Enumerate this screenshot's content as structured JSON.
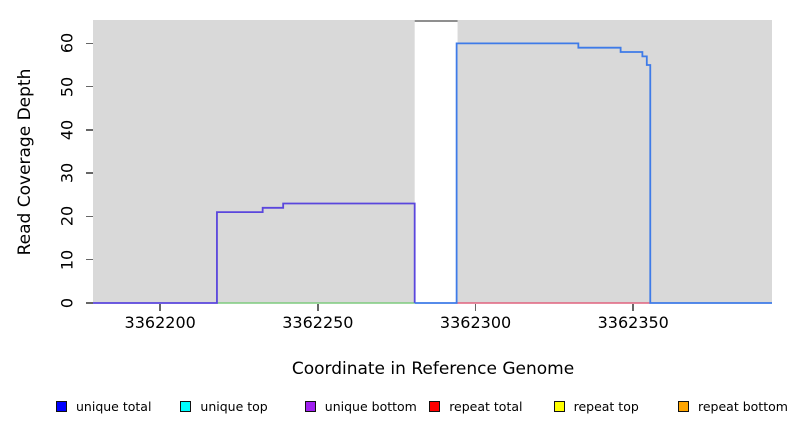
{
  "chart_data": {
    "type": "line",
    "subtype": "step-coverage",
    "title": "",
    "xlabel": "Coordinate in Reference Genome",
    "ylabel": "Read Coverage Depth",
    "xlim": [
      3362178.7,
      3362394.0
    ],
    "ylim": [
      0,
      65.4
    ],
    "x_ticks": [
      3362200,
      3362250,
      3362300,
      3362350
    ],
    "y_ticks": [
      0,
      10,
      20,
      30,
      40,
      50,
      60
    ],
    "grid": false,
    "plot_background": "#ffffff",
    "background_regions": [
      {
        "name": "covered-region-left",
        "x0": 3362178.7,
        "x1": 3362280.7,
        "color": "#d9d9d9"
      },
      {
        "name": "covered-region-right",
        "x0": 3362294.3,
        "x1": 3362394.0,
        "color": "#d9d9d9"
      }
    ],
    "gap_region": {
      "x0": 3362280.7,
      "x1": 3362294.3,
      "cap_color": "#8f8f8f"
    },
    "series": [
      {
        "name": "zero-baseline-green (unique top + repeat top overlap)",
        "color": "#7fcb7f",
        "stroke": 1.6,
        "segments": [
          [
            3362218.0,
            3362280.7,
            0
          ]
        ]
      },
      {
        "name": "zero-baseline-red (repeat total)",
        "color": "#e0627f",
        "stroke": 1.6,
        "segments": [
          [
            3362294.0,
            3362355.4,
            0
          ]
        ]
      },
      {
        "name": "left-block-coverage (unique bottom)",
        "color": "#5a46dd",
        "stroke": 1.8,
        "segments": [
          [
            3362178.7,
            3362218.0,
            0
          ],
          [
            3362218.0,
            3362232.5,
            21
          ],
          [
            3362232.5,
            3362239.0,
            22
          ],
          [
            3362239.0,
            3362280.7,
            23
          ],
          [
            3362280.7,
            3362280.7,
            0
          ]
        ]
      },
      {
        "name": "right-block-coverage (unique total)",
        "color": "#3e7be8",
        "stroke": 1.8,
        "segments": [
          [
            3362280.7,
            3362294.0,
            0
          ],
          [
            3362294.0,
            3362332.6,
            60
          ],
          [
            3362332.6,
            3362346.0,
            59
          ],
          [
            3362346.0,
            3362352.9,
            58
          ],
          [
            3362352.9,
            3362354.3,
            57
          ],
          [
            3362354.3,
            3362355.4,
            55
          ],
          [
            3362355.4,
            3362394.0,
            0
          ]
        ]
      }
    ],
    "legend": {
      "position": "bottom",
      "items": [
        {
          "label": "unique total",
          "color": "#0000ff"
        },
        {
          "label": "unique top",
          "color": "#00ffff"
        },
        {
          "label": "unique bottom",
          "color": "#a020f0"
        },
        {
          "label": "repeat total",
          "color": "#ff0000"
        },
        {
          "label": "repeat top",
          "color": "#ffff00"
        },
        {
          "label": "repeat bottom",
          "color": "#ffa500"
        }
      ]
    }
  }
}
